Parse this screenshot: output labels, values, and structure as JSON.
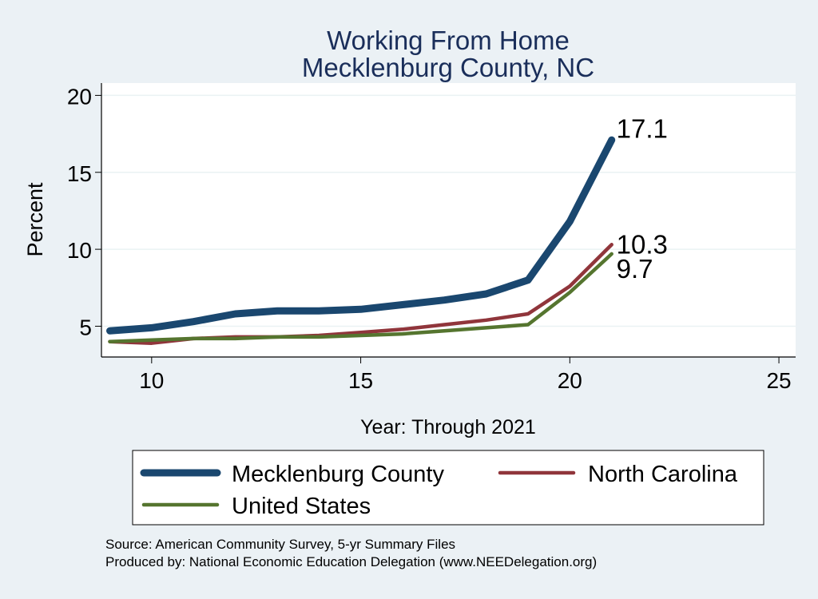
{
  "chart_data": {
    "type": "line",
    "title": "Working From Home",
    "subtitle": "Mecklenburg County, NC",
    "xlabel": "Year: Through 2021",
    "ylabel": "Percent",
    "xlim": [
      8.8,
      25.4
    ],
    "ylim": [
      3.0,
      20.8
    ],
    "xticks": [
      10,
      15,
      20,
      25
    ],
    "yticks": [
      5,
      10,
      15,
      20
    ],
    "grid": "horizontal",
    "legend": "bottom",
    "series": [
      {
        "name": "Mecklenburg County",
        "color": "#1a476f",
        "x": [
          9,
          10,
          11,
          12,
          13,
          14,
          15,
          16,
          17,
          18,
          19,
          20,
          21
        ],
        "y": [
          4.7,
          4.9,
          5.3,
          5.8,
          6.0,
          6.0,
          6.1,
          6.4,
          6.7,
          7.1,
          8.0,
          11.8,
          17.1
        ],
        "end_label": "17.1"
      },
      {
        "name": "North Carolina",
        "color": "#90353b",
        "x": [
          9,
          10,
          11,
          12,
          13,
          14,
          15,
          16,
          17,
          18,
          19,
          20,
          21
        ],
        "y": [
          4.0,
          3.9,
          4.2,
          4.3,
          4.3,
          4.4,
          4.6,
          4.8,
          5.1,
          5.4,
          5.8,
          7.6,
          10.3
        ],
        "end_label": "10.3"
      },
      {
        "name": "United States",
        "color": "#55752f",
        "x": [
          9,
          10,
          11,
          12,
          13,
          14,
          15,
          16,
          17,
          18,
          19,
          20,
          21
        ],
        "y": [
          4.0,
          4.1,
          4.2,
          4.2,
          4.3,
          4.3,
          4.4,
          4.5,
          4.7,
          4.9,
          5.1,
          7.2,
          9.7
        ],
        "end_label": "9.7"
      }
    ]
  },
  "footer": {
    "source": "Source: American Community Survey, 5-yr Summary Files",
    "produced_by": "Produced by: National Economic Education Delegation (www.NEEDelegation.org)"
  }
}
